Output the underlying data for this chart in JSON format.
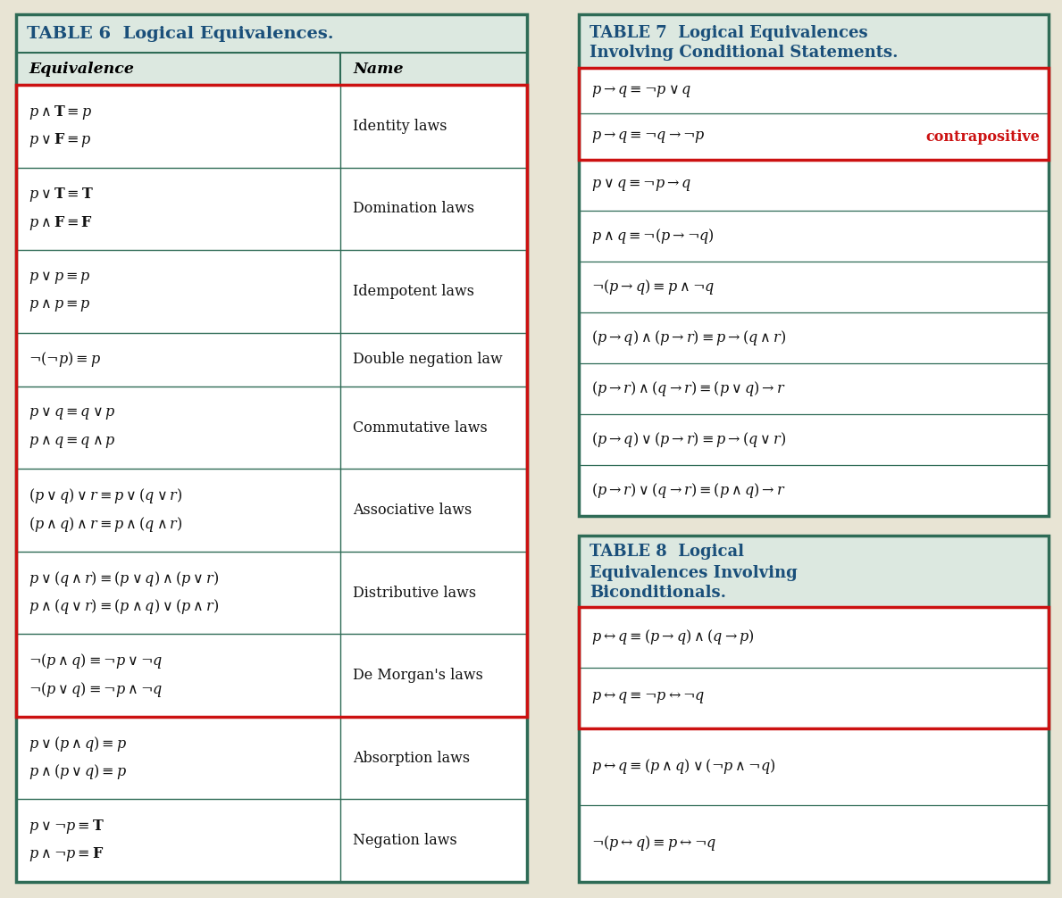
{
  "bg_color": "#e8e4d4",
  "table6_title": "TABLE 6  Logical Equivalences.",
  "table6_col_header": [
    "Equivalence",
    "Name"
  ],
  "table6_rows_eq": [
    "$p \\wedge \\mathbf{T} \\equiv p$\n$p \\vee \\mathbf{F} \\equiv p$",
    "$p \\vee \\mathbf{T} \\equiv \\mathbf{T}$\n$p \\wedge \\mathbf{F} \\equiv \\mathbf{F}$",
    "$p \\vee p \\equiv p$\n$p \\wedge p \\equiv p$",
    "$\\neg(\\neg p) \\equiv p$",
    "$p \\vee q \\equiv q \\vee p$\n$p \\wedge q \\equiv q \\wedge p$",
    "$(p \\vee q) \\vee r \\equiv p \\vee (q \\vee r)$\n$(p \\wedge q) \\wedge r \\equiv p \\wedge (q \\wedge r)$",
    "$p \\vee (q \\wedge r) \\equiv (p \\vee q) \\wedge (p \\vee r)$\n$p \\wedge (q \\vee r) \\equiv (p \\wedge q) \\vee (p \\wedge r)$",
    "$\\neg(p \\wedge q) \\equiv \\neg p \\vee \\neg q$\n$\\neg(p \\vee q) \\equiv \\neg p \\wedge \\neg q$",
    "$p \\vee (p \\wedge q) \\equiv p$\n$p \\wedge (p \\vee q) \\equiv p$",
    "$p \\vee \\neg p \\equiv \\mathbf{T}$\n$p \\wedge \\neg p \\equiv \\mathbf{F}$"
  ],
  "table6_rows_name": [
    "Identity laws",
    "Domination laws",
    "Idempotent laws",
    "Double negation law",
    "Commutative laws",
    "Associative laws",
    "Distributive laws",
    "De Morgan's laws",
    "Absorption laws",
    "Negation laws"
  ],
  "table7_title_line1": "TABLE 7  Logical Equivalences",
  "table7_title_line2": "Involving Conditional Statements.",
  "table7_rows": [
    "$p \\rightarrow q \\equiv \\neg p \\vee q$",
    "$p \\rightarrow q \\equiv \\neg q \\rightarrow \\neg p$",
    "$p \\vee q \\equiv \\neg p \\rightarrow q$",
    "$p \\wedge q \\equiv \\neg(p \\rightarrow \\neg q)$",
    "$\\neg(p \\rightarrow q) \\equiv p \\wedge \\neg q$",
    "$(p \\rightarrow q) \\wedge (p \\rightarrow r) \\equiv p \\rightarrow (q \\wedge r)$",
    "$(p \\rightarrow r) \\wedge (q \\rightarrow r) \\equiv (p \\vee q) \\rightarrow r$",
    "$(p \\rightarrow q) \\vee (p \\rightarrow r) \\equiv p \\rightarrow (q \\vee r)$",
    "$(p \\rightarrow r) \\vee (q \\rightarrow r) \\equiv (p \\wedge q) \\rightarrow r$"
  ],
  "table7_contrapositive": "contrapositive",
  "table8_title_line1": "TABLE 8  Logical",
  "table8_title_line2": "Equivalences Involving",
  "table8_title_line3": "Biconditionals.",
  "table8_rows": [
    "$p \\leftrightarrow q \\equiv (p \\rightarrow q) \\wedge (q \\rightarrow p)$",
    "$p \\leftrightarrow q \\equiv \\neg p \\leftrightarrow \\neg q$",
    "$p \\leftrightarrow q \\equiv (p \\wedge q) \\vee (\\neg p \\wedge \\neg q)$",
    "$\\neg(p \\leftrightarrow q) \\equiv p \\leftrightarrow \\neg q$"
  ],
  "teal": "#2e6b56",
  "red": "#cc1111",
  "title_blue": "#1a4f7a",
  "header_bg": "#dce8e0",
  "white": "#ffffff",
  "text_dark": "#111111"
}
